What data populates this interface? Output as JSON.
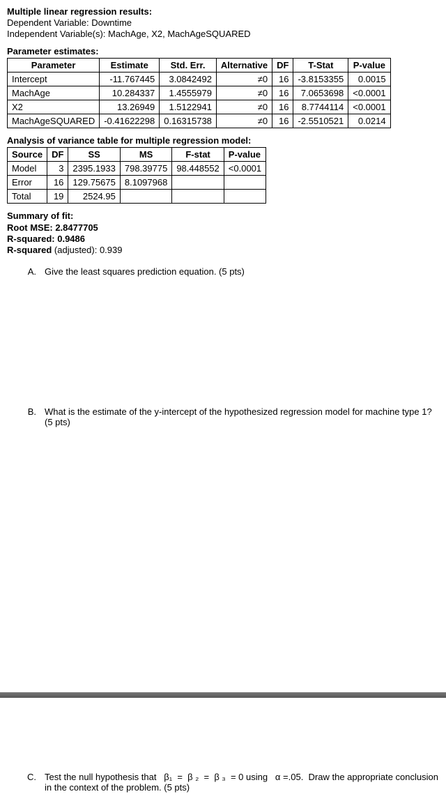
{
  "header": {
    "line1": "Multiple linear regression results:",
    "dep_label": "Dependent Variable:",
    "dep_value": "Downtime",
    "indep_label": "Independent Variable(s):",
    "indep_value": "MachAge, X2, MachAgeSQUARED"
  },
  "param_section_title": "Parameter estimates:",
  "param_table": {
    "headers": [
      "Parameter",
      "Estimate",
      "Std. Err.",
      "Alternative",
      "DF",
      "T-Stat",
      "P-value"
    ],
    "rows": [
      [
        "Intercept",
        "-11.767445",
        "3.0842492",
        "≠0",
        "16",
        "-3.8153355",
        "0.0015"
      ],
      [
        "MachAge",
        "10.284337",
        "1.4555979",
        "≠0",
        "16",
        "7.0653698",
        "<0.0001"
      ],
      [
        "X2",
        "13.26949",
        "1.5122941",
        "≠0",
        "16",
        "8.7744114",
        "<0.0001"
      ],
      [
        "MachAgeSQUARED",
        "-0.41622298",
        "0.16315738",
        "≠0",
        "16",
        "-2.5510521",
        "0.0214"
      ]
    ]
  },
  "anova_section_title": "Analysis of variance table for multiple regression model:",
  "anova_table": {
    "headers": [
      "Source",
      "DF",
      "SS",
      "MS",
      "F-stat",
      "P-value"
    ],
    "rows": [
      [
        "Model",
        "3",
        "2395.1933",
        "798.39775",
        "98.448552",
        "<0.0001"
      ],
      [
        "Error",
        "16",
        "129.75675",
        "8.1097968",
        "",
        ""
      ],
      [
        "Total",
        "19",
        "2524.95",
        "",
        "",
        ""
      ]
    ]
  },
  "summary": {
    "title": "Summary of fit:",
    "root_mse": "Root MSE: 2.8477705",
    "r2": "R-squared: 0.9486",
    "r2adj": "R-squared (adjusted): 0.939"
  },
  "questions": {
    "a_letter": "A.",
    "a_text": "Give the least squares prediction equation. (5 pts)",
    "b_letter": "B.",
    "b_text": "What is the estimate of the y-intercept of the hypothesized regression model for machine type 1? (5 pts)",
    "c_letter": "C.",
    "c_text": "Test the null hypothesis that   β₁  =  β ₂  =  β ₃  = 0 using   α =.05.  Draw the appropriate conclusion in the context of the problem. (5 pts)"
  }
}
